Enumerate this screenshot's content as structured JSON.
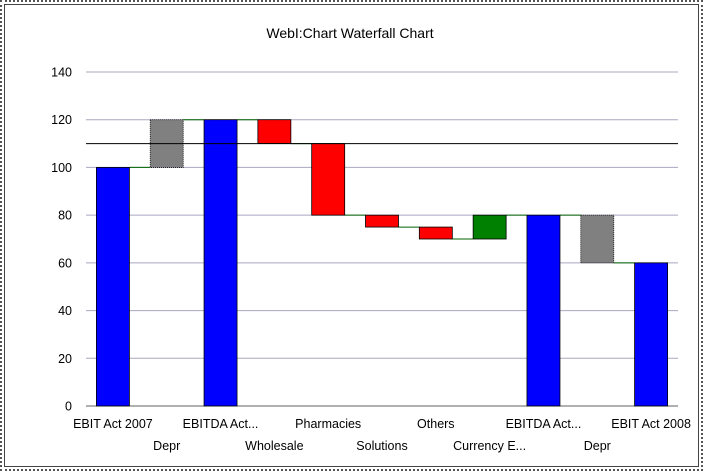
{
  "chart_data": {
    "type": "bar",
    "subtype": "waterfall",
    "title": "WebI:Chart Waterfall Chart",
    "xlabel": "",
    "ylabel": "",
    "ylim": [
      0,
      140
    ],
    "yticks": [
      0,
      20,
      40,
      60,
      80,
      100,
      120,
      140
    ],
    "grid": true,
    "reference_line": 110,
    "categories": [
      "EBIT Act 2007",
      "Depr",
      "EBITDA Act...",
      "Wholesale",
      "Pharmacies",
      "Solutions",
      "Others",
      "Currency E...",
      "EBITDA Act...",
      "Depr",
      "EBIT Act 2008"
    ],
    "bars": [
      {
        "from": 0,
        "to": 100,
        "kind": "total"
      },
      {
        "from": 100,
        "to": 120,
        "kind": "adjustment"
      },
      {
        "from": 0,
        "to": 120,
        "kind": "total"
      },
      {
        "from": 120,
        "to": 110,
        "kind": "decrease"
      },
      {
        "from": 110,
        "to": 80,
        "kind": "decrease"
      },
      {
        "from": 80,
        "to": 75,
        "kind": "decrease"
      },
      {
        "from": 75,
        "to": 70,
        "kind": "decrease"
      },
      {
        "from": 70,
        "to": 80,
        "kind": "increase"
      },
      {
        "from": 0,
        "to": 80,
        "kind": "total"
      },
      {
        "from": 80,
        "to": 60,
        "kind": "adjustment"
      },
      {
        "from": 0,
        "to": 60,
        "kind": "total"
      }
    ],
    "colors": {
      "total": "#0000ff",
      "adjustment": "#808080",
      "decrease": "#ff0000",
      "increase": "#008000",
      "connector": "#006400",
      "reference": "#000000",
      "grid": "#a8a8c0"
    }
  }
}
